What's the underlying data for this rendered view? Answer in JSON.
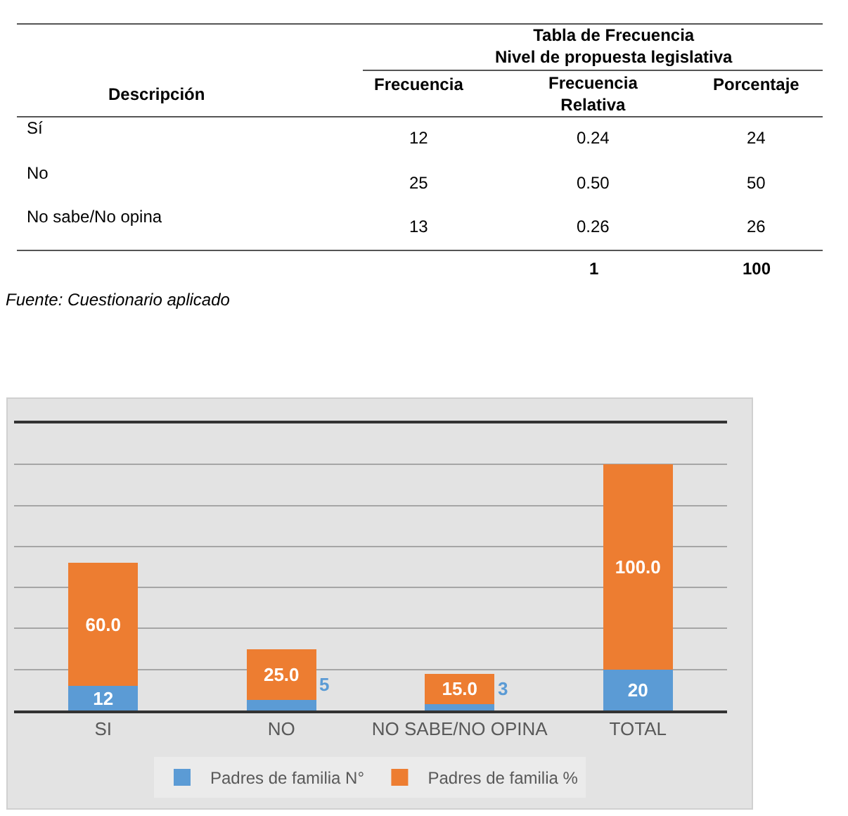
{
  "chart_data": [
    {
      "type": "other",
      "title": "Tabla de Frecuencia\nNivel de propuesta legislativa",
      "annotations": [
        "Descripción",
        "Frecuencia",
        "Frecuencia\nRelativa",
        "Porcentaje",
        "Sí",
        "12",
        "0.24",
        "24",
        "No",
        "25",
        "0.50",
        "50",
        "No sabe/No opina",
        "13",
        "0.26",
        "26",
        "1",
        "100",
        "Fuente: Cuestionario aplicado"
      ]
    },
    {
      "type": "bar",
      "stacked": true,
      "categories": [
        "SI",
        "NO",
        "NO SABE/NO OPINA",
        "TOTAL"
      ],
      "series": [
        {
          "name": "Padres de familia N°",
          "color": "#5b9bd5",
          "values": [
            12,
            5,
            3,
            20
          ],
          "value_labels": [
            "12",
            "5",
            "3",
            "20"
          ]
        },
        {
          "name": "Padres de familia %",
          "color": "#ed7d31",
          "values": [
            60,
            25,
            15,
            100
          ],
          "value_labels": [
            "60.0",
            "25.0",
            "15.0",
            "100.0"
          ]
        }
      ],
      "ylim": [
        0,
        140
      ],
      "yticks": [
        {
          "value": 0,
          "label": null
        },
        {
          "value": 20,
          "label": null
        },
        {
          "value": 40,
          "label": null
        },
        {
          "value": 60,
          "label": null
        },
        {
          "value": 80,
          "label": null
        },
        {
          "value": 100,
          "label": null
        },
        {
          "value": 120,
          "label": null
        }
      ],
      "grid": "y",
      "legend": "bottom",
      "tick_labels": "x"
    }
  ]
}
